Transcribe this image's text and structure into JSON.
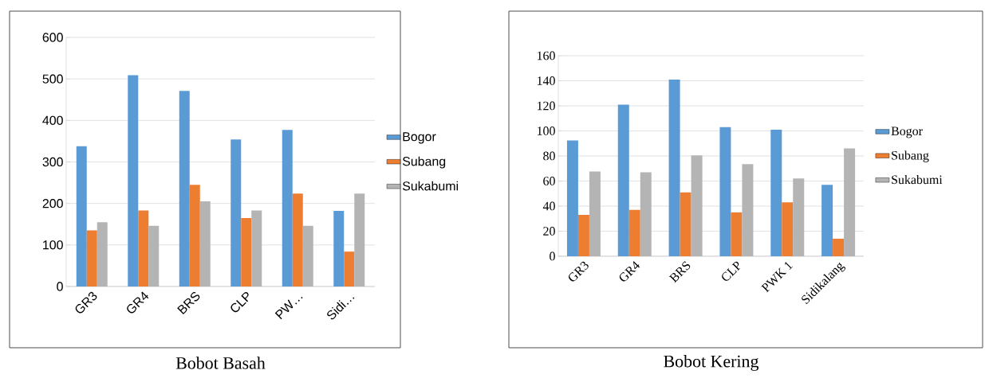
{
  "chart_data": [
    {
      "type": "bar",
      "title": "Bobot Basah",
      "categories": [
        "GR3",
        "GR4",
        "BRS",
        "CLP",
        "PW…",
        "Sidi…"
      ],
      "series": [
        {
          "name": "Bogor",
          "color": "#5b9bd5",
          "values": [
            338,
            509,
            471,
            354,
            377,
            182
          ]
        },
        {
          "name": "Subang",
          "color": "#ed7d31",
          "values": [
            135,
            183,
            245,
            165,
            224,
            84
          ]
        },
        {
          "name": "Sukabumi",
          "color": "#b4b4b4",
          "values": [
            155,
            146,
            205,
            183,
            146,
            224
          ]
        }
      ],
      "ylim": [
        0,
        600
      ],
      "yticks": [
        0,
        100,
        200,
        300,
        400,
        500,
        600
      ],
      "grid": "y",
      "legend": "right"
    },
    {
      "type": "bar",
      "title": "Bobot Kering",
      "categories": [
        "GR3",
        "GR4",
        "BRS",
        "CLP",
        "PWK 1",
        "Sidikalang"
      ],
      "series": [
        {
          "name": "Bogor",
          "color": "#5b9bd5",
          "values": [
            92.4,
            121,
            141,
            103,
            101,
            57
          ]
        },
        {
          "name": "Subang",
          "color": "#ed7d31",
          "values": [
            33,
            37,
            51,
            35,
            43,
            14
          ]
        },
        {
          "name": "Sukabumi",
          "color": "#b4b4b4",
          "values": [
            67.6,
            67,
            80.5,
            73.5,
            62,
            86
          ]
        }
      ],
      "ylim": [
        0,
        160
      ],
      "yticks": [
        0,
        20,
        40,
        60,
        80,
        100,
        120,
        140,
        160
      ],
      "grid": "y",
      "legend": "right"
    }
  ]
}
